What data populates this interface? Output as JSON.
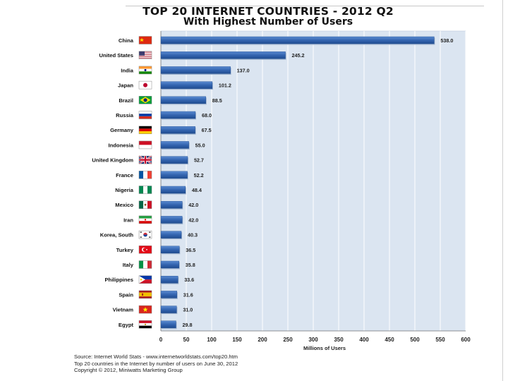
{
  "title": "TOP 20 INTERNET COUNTRIES  - 2012 Q2",
  "subtitle": "With Highest Number of Users",
  "source_lines": [
    "Source: Internet World Stats  -  www.internetworldstats.com/top20.htm",
    "Top 20 countries in the Internet by number of users on June 30, 2012",
    "Copyright © 2012, Miniwatts Marketing Group"
  ],
  "colors": {
    "plot_bg": "#dbe5f1",
    "grid": "#ffffff",
    "bar": "#3465b0",
    "bar_dark": "#1f4c8f"
  },
  "chart_data": {
    "type": "bar",
    "orientation": "horizontal",
    "title": "TOP 20 INTERNET COUNTRIES  - 2012 Q2",
    "subtitle": "With Highest Number of Users",
    "xlabel": "Millions of Users",
    "ylabel": "",
    "xlim": [
      0,
      600
    ],
    "xticks": [
      0,
      50,
      100,
      150,
      200,
      250,
      300,
      350,
      400,
      450,
      500,
      550,
      600
    ],
    "grid": true,
    "categories": [
      "China",
      "United States",
      "India",
      "Japan",
      "Brazil",
      "Russia",
      "Germany",
      "Indonesia",
      "United Kingdom",
      "France",
      "Nigeria",
      "Mexico",
      "Iran",
      "Korea, South",
      "Turkey",
      "Italy",
      "Philippines",
      "Spain",
      "Vietnam",
      "Egypt"
    ],
    "values": [
      538.0,
      245.2,
      137.0,
      101.2,
      88.5,
      68.0,
      67.5,
      55.0,
      52.7,
      52.2,
      48.4,
      42.0,
      42.0,
      40.3,
      36.5,
      35.8,
      33.6,
      31.6,
      31.0,
      29.8
    ],
    "value_labels": [
      "538.0",
      "245.2",
      "137.0",
      "101.2",
      "88.5",
      "68.0",
      "67.5",
      "55.0",
      "52.7",
      "52.2",
      "48.4",
      "42.0",
      "42.0",
      "40.3",
      "36.5",
      "35.8",
      "33.6",
      "31.6",
      "31.0",
      "29.8"
    ],
    "flag_icons": [
      "china-flag",
      "usa-flag",
      "india-flag",
      "japan-flag",
      "brazil-flag",
      "russia-flag",
      "germany-flag",
      "indonesia-flag",
      "uk-flag",
      "france-flag",
      "nigeria-flag",
      "mexico-flag",
      "iran-flag",
      "south-korea-flag",
      "turkey-flag",
      "italy-flag",
      "philippines-flag",
      "spain-flag",
      "vietnam-flag",
      "egypt-flag"
    ]
  }
}
